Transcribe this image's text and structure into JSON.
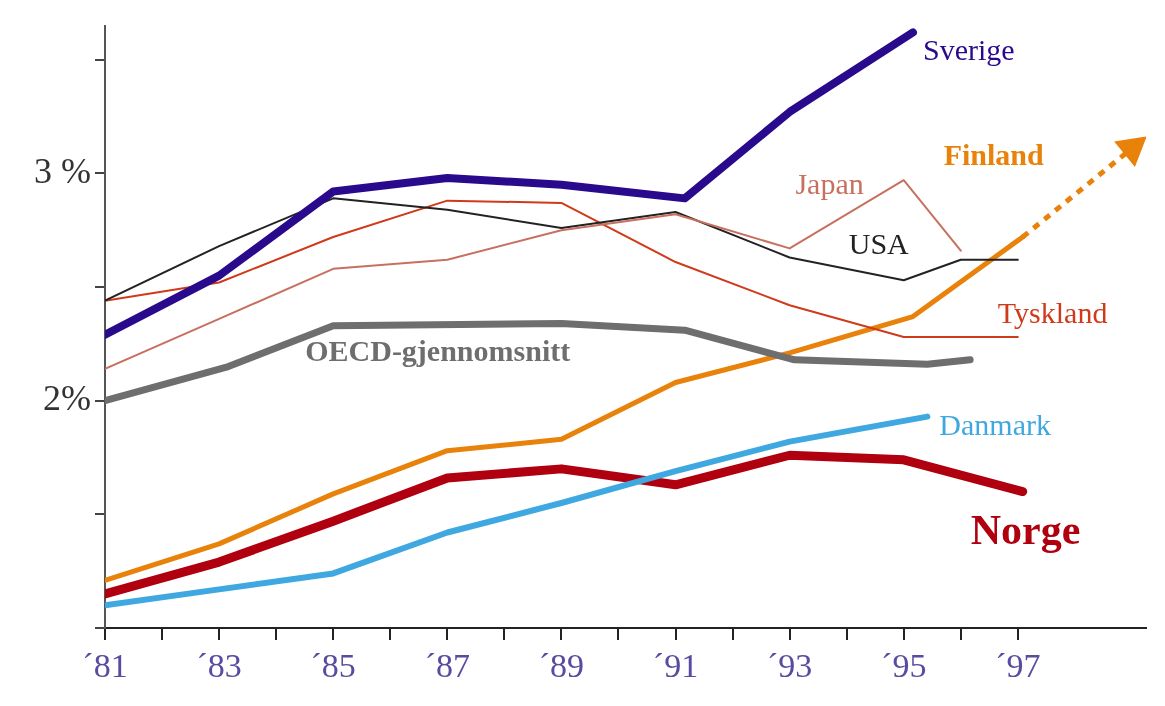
{
  "chart_data": {
    "type": "line",
    "xlim": [
      "1981",
      "1999-04"
    ],
    "xticks": [
      {
        "value": "1981",
        "label": "´81"
      },
      {
        "value": "1982",
        "label": null
      },
      {
        "value": "1983",
        "label": "´83"
      },
      {
        "value": "1984",
        "label": null
      },
      {
        "value": "1985",
        "label": "´85"
      },
      {
        "value": "1986",
        "label": null
      },
      {
        "value": "1987",
        "label": "´87"
      },
      {
        "value": "1988",
        "label": null
      },
      {
        "value": "1989",
        "label": "´89"
      },
      {
        "value": "1990",
        "label": null
      },
      {
        "value": "1991",
        "label": "´91"
      },
      {
        "value": "1992",
        "label": null
      },
      {
        "value": "1993",
        "label": "´93"
      },
      {
        "value": "1994",
        "label": null
      },
      {
        "value": "1995",
        "label": "´95"
      },
      {
        "value": "1996",
        "label": null
      },
      {
        "value": "1997",
        "label": "´97"
      }
    ],
    "ylim": [
      1,
      3.65
    ],
    "yticks": [
      {
        "value": 1,
        "label": null
      },
      {
        "value": 1.5,
        "label": null
      },
      {
        "value": 2,
        "label": "2%"
      },
      {
        "value": 2.5,
        "label": null
      },
      {
        "value": 3,
        "label": "3 %"
      },
      {
        "value": 3.5,
        "label": null
      }
    ],
    "grid": false,
    "legend": false,
    "series": [
      {
        "name": "Sverige",
        "color": "#2a0a8c",
        "x": [
          "1981",
          "1983",
          "1985",
          "1987",
          "1989",
          "1991-03",
          "1993",
          "1995-03"
        ],
        "values": [
          2.29,
          2.55,
          2.92,
          2.98,
          2.95,
          2.89,
          3.27,
          3.62
        ]
      },
      {
        "name": "Japan",
        "color": "#c87060",
        "x": [
          "1981",
          "1983",
          "1985",
          "1987",
          "1989",
          "1991",
          "1993",
          "1995",
          "1996"
        ],
        "values": [
          2.14,
          2.36,
          2.58,
          2.62,
          2.75,
          2.82,
          2.67,
          2.97,
          2.66
        ]
      },
      {
        "name": "USA",
        "color": "#222222",
        "x": [
          "1981",
          "1983",
          "1985",
          "1987",
          "1989",
          "1991",
          "1993",
          "1995",
          "1996",
          "1997"
        ],
        "values": [
          2.44,
          2.68,
          2.89,
          2.84,
          2.76,
          2.83,
          2.63,
          2.53,
          2.62,
          2.62
        ]
      },
      {
        "name": "Tyskland",
        "color": "#d03a1a",
        "x": [
          "1981",
          "1983",
          "1985",
          "1987",
          "1989",
          "1991",
          "1993",
          "1995",
          "1997"
        ],
        "values": [
          2.44,
          2.52,
          2.72,
          2.88,
          2.87,
          2.61,
          2.42,
          2.28,
          2.28
        ]
      },
      {
        "name": "OECD-gjennomsnitt",
        "color": "#6e6e6e",
        "x": [
          "1981",
          "1983-03",
          "1985",
          "1989",
          "1991-03",
          "1993-02",
          "1995-06",
          "1996-03"
        ],
        "values": [
          2.0,
          2.15,
          2.33,
          2.34,
          2.31,
          2.18,
          2.16,
          2.18
        ]
      },
      {
        "name": "Finland",
        "color": "#e8820a",
        "x": [
          "1981",
          "1983",
          "1985",
          "1987",
          "1989",
          "1991",
          "1993",
          "1995-03",
          "1997-02"
        ],
        "values": [
          1.21,
          1.37,
          1.59,
          1.78,
          1.83,
          2.08,
          2.21,
          2.37,
          2.72
        ]
      },
      {
        "color": "#e8820a",
        "line_style": "dotted",
        "x": [
          "1997-02",
          "1999"
        ],
        "values": [
          2.72,
          3.11
        ]
      },
      {
        "name": "Danmark",
        "color": "#40a8e0",
        "x": [
          "1981",
          "1983",
          "1985",
          "1987",
          "1989",
          "1991",
          "1993",
          "1995-06"
        ],
        "values": [
          1.1,
          1.17,
          1.24,
          1.42,
          1.55,
          1.69,
          1.82,
          1.93
        ]
      },
      {
        "name": "Norge",
        "color": "#b00010",
        "x": [
          "1981",
          "1983",
          "1985",
          "1987",
          "1989",
          "1991",
          "1993",
          "1995",
          "1997-02"
        ],
        "values": [
          1.15,
          1.29,
          1.47,
          1.66,
          1.7,
          1.63,
          1.76,
          1.74,
          1.6
        ]
      }
    ]
  }
}
